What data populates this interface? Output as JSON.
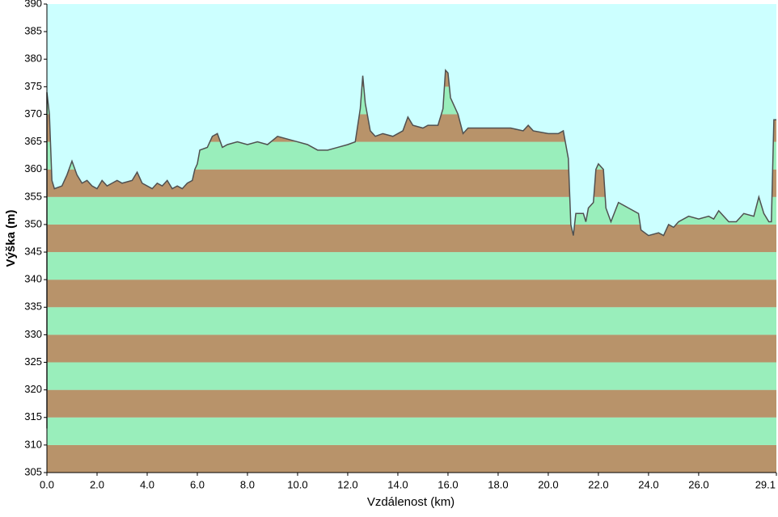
{
  "chart_data": {
    "type": "area",
    "x_label": "Vzdálenost  (km)",
    "y_label": "Výška (m)",
    "x": [
      0.0,
      0.0,
      0.1,
      0.2,
      0.3,
      0.6,
      0.8,
      1.0,
      1.2,
      1.4,
      1.6,
      1.8,
      2.0,
      2.2,
      2.4,
      2.6,
      2.8,
      3.0,
      3.4,
      3.6,
      3.8,
      4.2,
      4.4,
      4.6,
      4.8,
      5.0,
      5.2,
      5.4,
      5.6,
      5.8,
      5.9,
      6.0,
      6.1,
      6.4,
      6.6,
      6.8,
      7.0,
      7.2,
      7.6,
      8.0,
      8.4,
      8.8,
      9.2,
      9.6,
      10.0,
      10.4,
      10.8,
      11.2,
      11.6,
      12.0,
      12.3,
      12.5,
      12.6,
      12.7,
      12.9,
      13.1,
      13.4,
      13.8,
      14.2,
      14.4,
      14.6,
      15.0,
      15.2,
      15.6,
      15.8,
      15.9,
      16.0,
      16.1,
      16.4,
      16.6,
      16.8,
      17.5,
      18.5,
      19.0,
      19.2,
      19.4,
      20.0,
      20.4,
      20.6,
      20.8,
      20.9,
      21.0,
      21.1,
      21.4,
      21.5,
      21.6,
      21.8,
      21.9,
      22.0,
      22.2,
      22.3,
      22.5,
      22.8,
      23.2,
      23.6,
      23.7,
      24.0,
      24.4,
      24.6,
      24.8,
      25.0,
      25.2,
      25.6,
      26.0,
      26.4,
      26.6,
      26.8,
      27.2,
      27.5,
      27.8,
      28.2,
      28.4,
      28.6,
      28.8,
      28.9,
      29.0,
      29.1
    ],
    "values": [
      313,
      374,
      370,
      358,
      356.5,
      357,
      359,
      361.5,
      359,
      357.5,
      358,
      357,
      356.5,
      358,
      357,
      357.5,
      358,
      357.5,
      358,
      359.5,
      357.5,
      356.5,
      357.5,
      357,
      358,
      356.5,
      357,
      356.5,
      357.5,
      358,
      360,
      361,
      363.5,
      364,
      366,
      366.5,
      364,
      364.5,
      365,
      364.5,
      365,
      364.5,
      366,
      365.5,
      365,
      364.5,
      363.5,
      363.5,
      364,
      364.5,
      365,
      371,
      377,
      372,
      367,
      366,
      366.5,
      366,
      367,
      369.5,
      368,
      367.5,
      368,
      368,
      371,
      378,
      377.5,
      373,
      370,
      366.5,
      367.5,
      367.5,
      367.5,
      367,
      368,
      367,
      366.5,
      366.5,
      367,
      362,
      350,
      348,
      352,
      352,
      350.5,
      353,
      354,
      360,
      361,
      360,
      353,
      350.5,
      354,
      353,
      352,
      349,
      348,
      348.5,
      348,
      350,
      349.5,
      350.5,
      351.5,
      351,
      351.5,
      351,
      352.5,
      350.5,
      350.5,
      352,
      351.5,
      355,
      352,
      350.5,
      350.5,
      369,
      369
    ],
    "line_color": "#505050",
    "background_color": "#ccffff",
    "band_colors": [
      "#b8936a",
      "#99eebb"
    ],
    "xlim": [
      0,
      29.1
    ],
    "xticks": [
      {
        "value": 0,
        "label": "0.0"
      },
      {
        "value": 2,
        "label": "2.0"
      },
      {
        "value": 4,
        "label": "4.0"
      },
      {
        "value": 6,
        "label": "6.0"
      },
      {
        "value": 8,
        "label": "8.0"
      },
      {
        "value": 10,
        "label": "10.0"
      },
      {
        "value": 12,
        "label": "12.0"
      },
      {
        "value": 14,
        "label": "14.0"
      },
      {
        "value": 16,
        "label": "16.0"
      },
      {
        "value": 18,
        "label": "18.0"
      },
      {
        "value": 20,
        "label": "20.0"
      },
      {
        "value": 22,
        "label": "22.0"
      },
      {
        "value": 24,
        "label": "24.0"
      },
      {
        "value": 26,
        "label": "26.0"
      },
      29.1
    ],
    "ylim": [
      305,
      390
    ],
    "yticks": [
      305,
      310,
      315,
      320,
      325,
      330,
      335,
      340,
      345,
      350,
      355,
      360,
      365,
      370,
      375,
      380,
      385,
      390
    ]
  }
}
